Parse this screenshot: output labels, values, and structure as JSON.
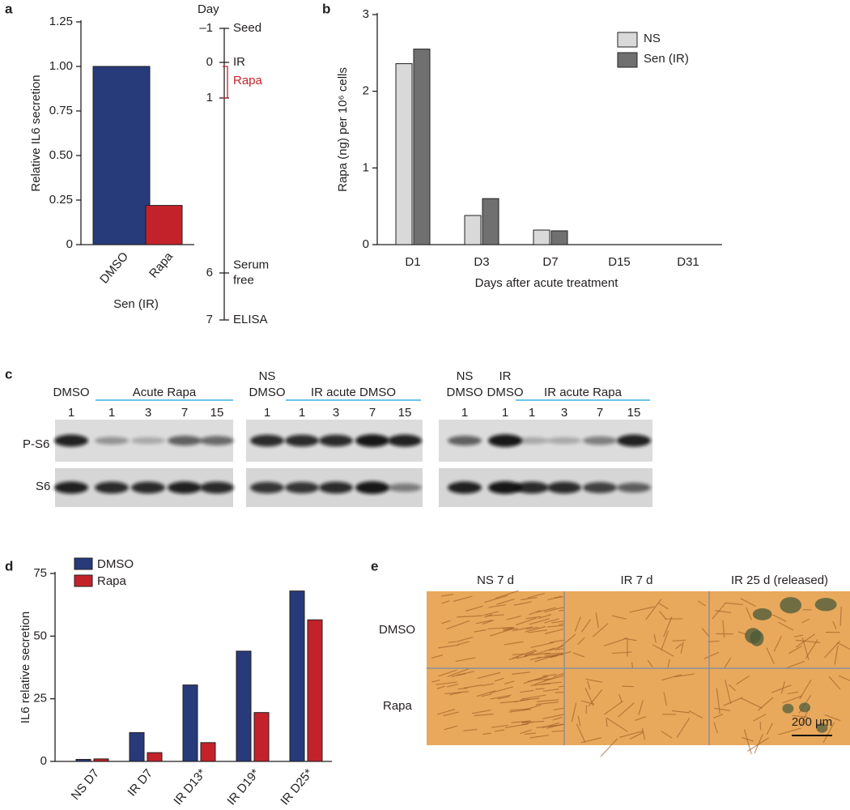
{
  "panel_labels": [
    "a",
    "b",
    "c",
    "d",
    "e"
  ],
  "chart_data": [
    {
      "type": "bar",
      "ylabel": "Relative IL6 secretion",
      "xlabel": "Sen (IR)",
      "categories": [
        "DMSO",
        "Rapa"
      ],
      "values": [
        1.0,
        0.22
      ],
      "colors": [
        "#273a7a",
        "#c4222a"
      ],
      "ylim": [
        0,
        1.25
      ],
      "yticks": [
        0,
        0.25,
        {
          "value": 0.5,
          "label": "0.50"
        },
        0.75,
        {
          "value": 1,
          "label": "1.00"
        },
        1.25
      ]
    },
    {
      "type": "bar",
      "ylabel": "Rapa (ng) per 10⁶ cells",
      "xlabel": "Days after acute treatment",
      "categories": [
        "D1",
        "D3",
        "D7",
        "D15",
        "D31"
      ],
      "series": [
        {
          "name": "NS",
          "color": "#d9d9d9",
          "values": [
            2.36,
            0.38,
            0.19,
            0,
            0
          ]
        },
        {
          "name": "Sen (IR)",
          "color": "#707070",
          "values": [
            2.55,
            0.6,
            0.18,
            0,
            0
          ]
        }
      ],
      "ylim": [
        0,
        3
      ],
      "yticks": [
        0,
        1,
        2,
        3
      ],
      "legend": "top-right"
    },
    {
      "type": "bar",
      "ylabel": "IL6 relative secretion",
      "categories": [
        "NS D7",
        "IR D7",
        "IR D13*",
        "IR D19*",
        "IR D25*"
      ],
      "series": [
        {
          "name": "DMSO",
          "color": "#273a7a",
          "values": [
            0.8,
            11.5,
            30.5,
            44,
            68
          ]
        },
        {
          "name": "Rapa",
          "color": "#c4222a",
          "values": [
            1,
            3.5,
            7.5,
            19.5,
            56.5
          ]
        }
      ],
      "ylim": [
        0,
        75
      ],
      "yticks": [
        0,
        25,
        50,
        75
      ],
      "legend": "top-left"
    }
  ],
  "timeline": {
    "title": "Day",
    "entries": [
      {
        "day": "–1",
        "event": [
          "Seed"
        ]
      },
      {
        "day": "0",
        "event": [
          "IR"
        ]
      },
      {
        "day": "1"
      },
      {
        "day": "6",
        "event": [
          "Serum",
          "free"
        ]
      },
      {
        "day": "7",
        "event": [
          "ELISA"
        ]
      }
    ],
    "treatment": {
      "label": "Rapa",
      "color": "#c4222a"
    }
  },
  "blot": {
    "rows": [
      "P-S6",
      "S6"
    ],
    "groups": [
      {
        "headers": [
          {
            "lines": [
              "DMSO"
            ]
          },
          {
            "lines": [
              "Acute Rapa"
            ],
            "bracket": true
          }
        ],
        "lanes": [
          "1",
          "1",
          "3",
          "7",
          "15"
        ]
      },
      {
        "headers": [
          {
            "lines": [
              "NS",
              "DMSO"
            ]
          },
          {
            "lines": [
              "IR acute DMSO"
            ],
            "bracket": true
          }
        ],
        "lanes": [
          "1",
          "1",
          "3",
          "7",
          "15"
        ]
      },
      {
        "headers": [
          {
            "lines": [
              "NS",
              "DMSO"
            ]
          },
          {
            "lines": [
              "IR",
              "DMSO"
            ]
          },
          {
            "lines": [
              "IR acute Rapa"
            ],
            "bracket": true
          }
        ],
        "lanes": [
          "1",
          "1",
          "1",
          "3",
          "7",
          "15"
        ]
      }
    ]
  },
  "micrograph": {
    "columns": [
      "NS 7 d",
      "IR 7 d",
      "IR 25 d (released)"
    ],
    "rows": [
      "DMSO",
      "Rapa"
    ],
    "scale_bar": "200 μm"
  }
}
